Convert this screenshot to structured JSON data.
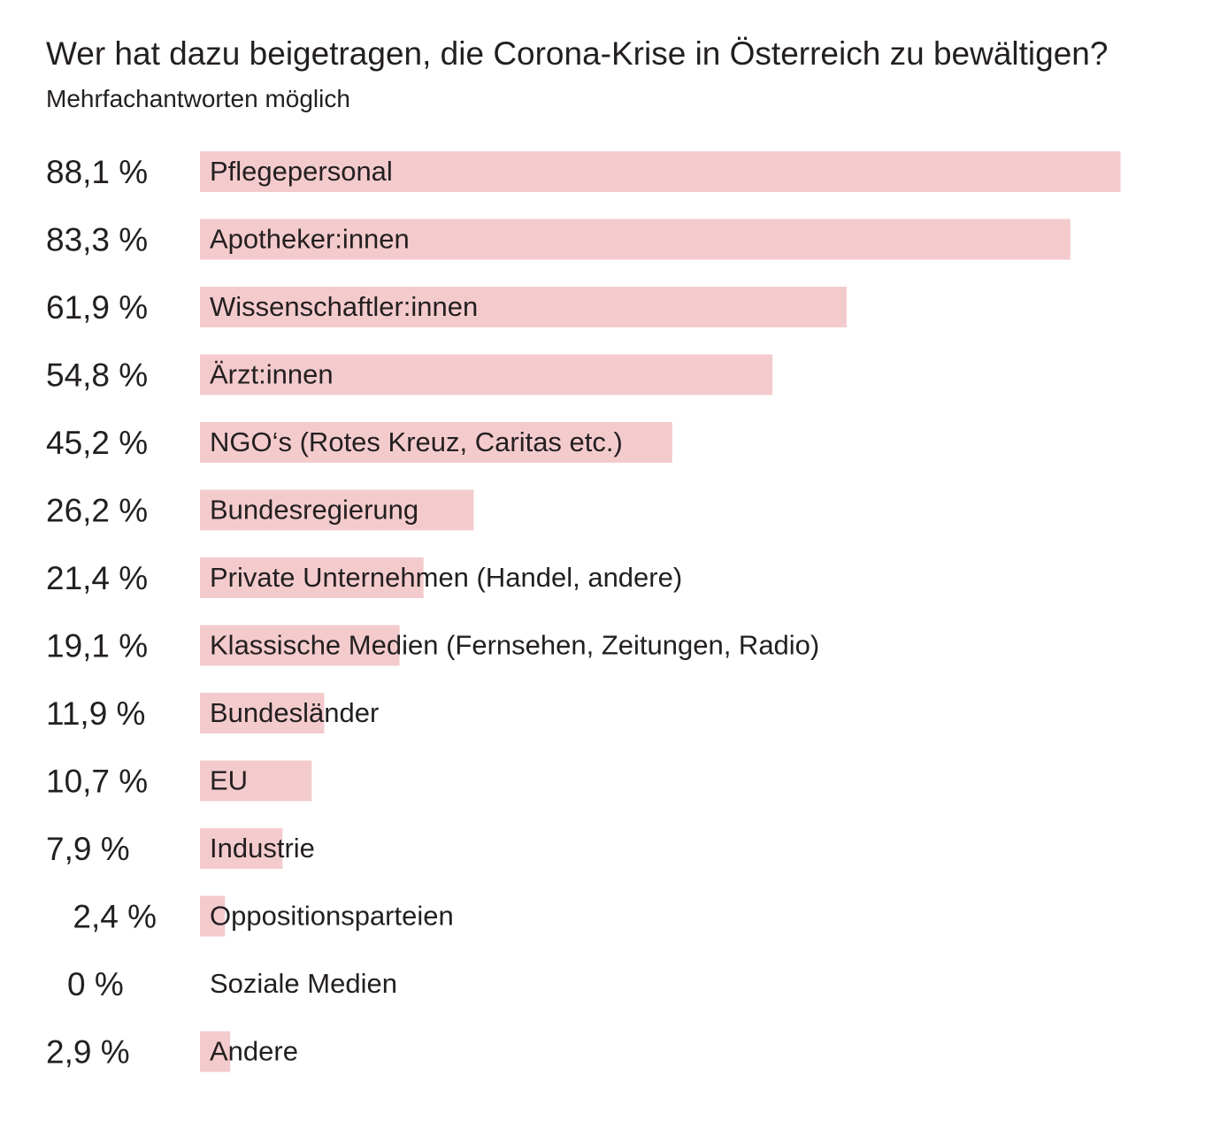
{
  "chart_data": {
    "type": "bar",
    "orientation": "horizontal",
    "title": "Wer hat dazu beigetragen, die Corona-Krise in Österreich zu bewältigen?",
    "subtitle": "Mehrfachantworten möglich",
    "bar_color": "#f4cbcd",
    "text_color": "#231f20",
    "xlim": [
      0,
      100
    ],
    "grid": false,
    "categories": [
      "Pflegepersonal",
      "Apotheker:innen",
      "Wissenschaftler:innen",
      "Ärzt:innen",
      "NGO‘s (Rotes Kreuz, Caritas etc.)",
      "Bundesregierung",
      "Private Unternehmen (Handel, andere)",
      "Klassische Medien (Fernsehen, Zeitungen, Radio)",
      "Bundesländer",
      "EU",
      "Industrie",
      "Oppositionsparteien",
      "Soziale Medien",
      "Andere"
    ],
    "values": [
      88.1,
      83.3,
      61.9,
      54.8,
      45.2,
      26.2,
      21.4,
      19.1,
      11.9,
      10.7,
      7.9,
      2.4,
      0,
      2.9
    ],
    "value_labels": [
      "88,1 %",
      "83,3 %",
      "61,9 %",
      "54,8 %",
      "45,2 %",
      "26,2 %",
      "21,4 %",
      "19,1 %",
      "11,9 %",
      "10,7 %",
      "7,9 %",
      "2,4 %",
      "0 %",
      "2,9 %"
    ]
  }
}
